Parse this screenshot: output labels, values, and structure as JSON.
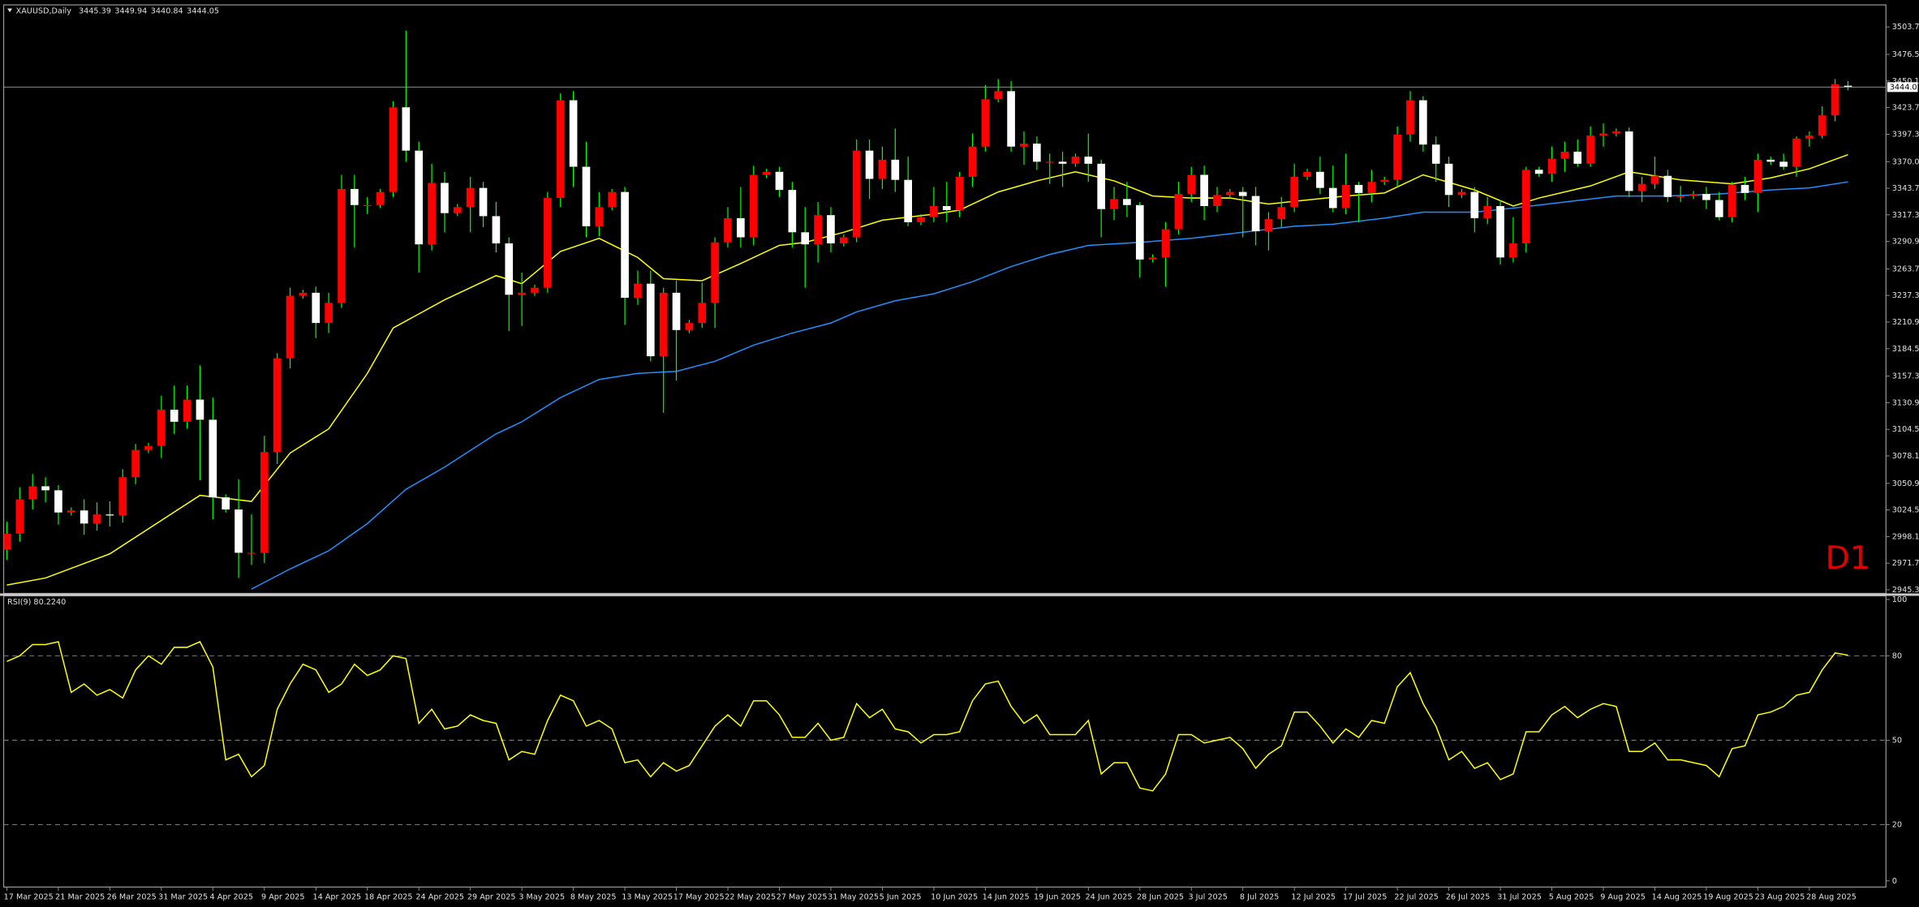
{
  "chart_data": [
    {
      "type": "candlestick",
      "title": "XAUUSD,Daily",
      "annotation": "D1",
      "up_color": "#ff0000",
      "down_color": "#ffffff",
      "wick_color": "#00ff00",
      "categories": [
        "17 Mar 2025",
        null,
        null,
        null,
        "21 Mar 2025",
        null,
        null,
        null,
        "26 Mar 2025",
        null,
        null,
        null,
        "31 Mar 2025",
        null,
        null,
        null,
        "4 Apr 2025",
        null,
        null,
        null,
        "9 Apr 2025",
        null,
        null,
        null,
        "14 Apr 2025",
        null,
        null,
        null,
        "18 Apr 2025",
        null,
        null,
        null,
        "24 Apr 2025",
        null,
        null,
        null,
        "29 Apr 2025",
        null,
        null,
        null,
        "3 May 2025",
        null,
        null,
        null,
        "8 May 2025",
        null,
        null,
        null,
        "13 May 2025",
        null,
        null,
        null,
        "17 May 2025",
        null,
        null,
        null,
        "22 May 2025",
        null,
        null,
        null,
        "27 May 2025",
        null,
        null,
        null,
        "31 May 2025",
        null,
        null,
        null,
        "5 Jun 2025",
        null,
        null,
        null,
        "10 Jun 2025",
        null,
        null,
        null,
        "14 Jun 2025",
        null,
        null,
        null,
        "19 Jun 2025",
        null,
        null,
        null,
        "24 Jun 2025",
        null,
        null,
        null,
        "28 Jun 2025",
        null,
        null,
        null,
        "3 Jul 2025",
        null,
        null,
        null,
        "8 Jul 2025",
        null,
        null,
        null,
        "12 Jul 2025",
        null,
        null,
        null,
        "17 Jul 2025",
        null,
        null,
        null,
        "22 Jul 2025",
        null,
        null,
        null,
        "26 Jul 2025",
        null,
        null,
        null,
        "31 Jul 2025",
        null,
        null,
        null,
        "5 Aug 2025",
        null,
        null,
        null,
        "9 Aug 2025",
        null,
        null,
        null,
        "14 Aug 2025",
        null,
        null,
        null,
        "19 Aug 2025",
        null,
        null,
        null,
        "23 Aug 2025",
        null,
        null,
        null,
        "28 Aug 2025",
        null,
        null,
        null
      ],
      "open": [
        2985,
        3001,
        3035,
        3048,
        3044,
        3022,
        3024,
        3011,
        3020,
        3019,
        3057,
        3084,
        3088,
        3124,
        3112,
        3134,
        3114,
        3037,
        3025,
        2982,
        2982,
        3082,
        3175,
        3237,
        3240,
        3210,
        3230,
        3343,
        3327,
        3327,
        3340,
        3424,
        3381,
        3288,
        3349,
        3319,
        3325,
        3344,
        3316,
        3289,
        3238,
        3240,
        3245,
        3334,
        3431,
        3365,
        3306,
        3325,
        3340,
        3235,
        3249,
        3177,
        3240,
        3203,
        3210,
        3230,
        3290,
        3314,
        3295,
        3357,
        3360,
        3342,
        3300,
        3288,
        3317,
        3289,
        3295,
        3381,
        3353,
        3372,
        3352,
        3310,
        3315,
        3326,
        3322,
        3355,
        3385,
        3432,
        3440,
        3385,
        3388,
        3370,
        3370,
        3368,
        3375,
        3368,
        3323,
        3333,
        3327,
        3273,
        3275,
        3303,
        3338,
        3357,
        3326,
        3337,
        3340,
        3336,
        3301,
        3313,
        3325,
        3355,
        3360,
        3344,
        3324,
        3347,
        3339,
        3350,
        3352,
        3397,
        3431,
        3387,
        3368,
        3337,
        3340,
        3314,
        3326,
        3275,
        3289,
        3362,
        3358,
        3373,
        3380,
        3368,
        3396,
        3398,
        3400,
        3341,
        3348,
        3356,
        3335,
        3336,
        3338,
        3332,
        3315,
        3347,
        3339,
        3372,
        3370,
        3365,
        3393,
        3396,
        3416,
        3445.39
      ],
      "high": [
        3013,
        3047,
        3060,
        3057,
        3049,
        3027,
        3035,
        3032,
        3033,
        3065,
        3090,
        3091,
        3138,
        3148,
        3148,
        3168,
        3136,
        3040,
        3055,
        3020,
        3098,
        3180,
        3245,
        3243,
        3246,
        3240,
        3357,
        3357,
        3335,
        3343,
        3430,
        3500,
        3390,
        3368,
        3360,
        3328,
        3355,
        3350,
        3330,
        3295,
        3260,
        3248,
        3340,
        3438,
        3440,
        3390,
        3340,
        3343,
        3345,
        3262,
        3262,
        3245,
        3252,
        3213,
        3250,
        3295,
        3325,
        3345,
        3366,
        3363,
        3365,
        3350,
        3325,
        3330,
        3325,
        3298,
        3392,
        3392,
        3385,
        3403,
        3375,
        3318,
        3345,
        3350,
        3360,
        3398,
        3446,
        3452,
        3450,
        3400,
        3395,
        3378,
        3380,
        3378,
        3398,
        3372,
        3345,
        3350,
        3330,
        3278,
        3310,
        3350,
        3365,
        3366,
        3345,
        3343,
        3345,
        3345,
        3320,
        3335,
        3368,
        3363,
        3375,
        3366,
        3378,
        3350,
        3362,
        3355,
        3405,
        3440,
        3435,
        3395,
        3375,
        3343,
        3345,
        3335,
        3332,
        3315,
        3365,
        3365,
        3385,
        3390,
        3392,
        3405,
        3408,
        3403,
        3404,
        3355,
        3375,
        3362,
        3346,
        3341,
        3345,
        3340,
        3350,
        3355,
        3378,
        3375,
        3378,
        3395,
        3400,
        3425,
        3452,
        3449.94
      ],
      "low": [
        2975,
        2993,
        3025,
        3032,
        3010,
        3019,
        3000,
        3004,
        3008,
        3012,
        3050,
        3081,
        3076,
        3100,
        3105,
        3054,
        3015,
        3022,
        2957,
        2970,
        2972,
        3070,
        3165,
        3234,
        3195,
        3200,
        3225,
        3285,
        3318,
        3324,
        3335,
        3370,
        3260,
        3282,
        3300,
        3316,
        3300,
        3305,
        3280,
        3202,
        3207,
        3237,
        3240,
        3325,
        3345,
        3295,
        3296,
        3322,
        3208,
        3228,
        3172,
        3121,
        3153,
        3200,
        3205,
        3205,
        3285,
        3285,
        3287,
        3354,
        3335,
        3285,
        3245,
        3270,
        3280,
        3286,
        3290,
        3333,
        3343,
        3340,
        3306,
        3307,
        3310,
        3310,
        3315,
        3345,
        3380,
        3429,
        3380,
        3367,
        3362,
        3348,
        3345,
        3365,
        3350,
        3295,
        3312,
        3315,
        3255,
        3270,
        3246,
        3298,
        3330,
        3312,
        3320,
        3334,
        3295,
        3287,
        3282,
        3305,
        3320,
        3352,
        3338,
        3320,
        3318,
        3310,
        3330,
        3347,
        3345,
        3390,
        3380,
        3350,
        3325,
        3334,
        3300,
        3308,
        3268,
        3270,
        3280,
        3355,
        3350,
        3360,
        3365,
        3365,
        3385,
        3395,
        3335,
        3330,
        3343,
        3330,
        3330,
        3333,
        3323,
        3312,
        3310,
        3332,
        3320,
        3367,
        3362,
        3355,
        3385,
        3393,
        3410,
        3440.84
      ],
      "close": [
        3001,
        3035,
        3048,
        3044,
        3022,
        3024,
        3011,
        3020,
        3019,
        3057,
        3084,
        3088,
        3124,
        3112,
        3134,
        3114,
        3037,
        3025,
        2982,
        2982,
        3082,
        3175,
        3237,
        3240,
        3210,
        3230,
        3343,
        3327,
        3327,
        3340,
        3424,
        3381,
        3288,
        3349,
        3319,
        3325,
        3344,
        3316,
        3289,
        3238,
        3240,
        3245,
        3334,
        3431,
        3365,
        3306,
        3325,
        3340,
        3235,
        3249,
        3177,
        3240,
        3203,
        3210,
        3230,
        3290,
        3314,
        3295,
        3357,
        3360,
        3342,
        3300,
        3288,
        3317,
        3289,
        3295,
        3381,
        3353,
        3372,
        3352,
        3310,
        3315,
        3326,
        3322,
        3355,
        3385,
        3432,
        3440,
        3385,
        3388,
        3370,
        3370,
        3368,
        3375,
        3368,
        3323,
        3333,
        3327,
        3273,
        3275,
        3303,
        3338,
        3357,
        3326,
        3337,
        3340,
        3336,
        3301,
        3313,
        3325,
        3355,
        3360,
        3344,
        3324,
        3347,
        3339,
        3350,
        3352,
        3397,
        3431,
        3387,
        3368,
        3337,
        3340,
        3314,
        3326,
        3275,
        3289,
        3362,
        3358,
        3373,
        3380,
        3368,
        3396,
        3398,
        3400,
        3341,
        3348,
        3356,
        3335,
        3336,
        3338,
        3332,
        3315,
        3347,
        3339,
        3372,
        3370,
        3365,
        3393,
        3396,
        3416,
        3447,
        3444.05
      ],
      "lines": [
        {
          "color": "#ffff00",
          "x": [
            0,
            3,
            8,
            15,
            19,
            22,
            25,
            28,
            30,
            34,
            38,
            40,
            43,
            46,
            49,
            51,
            54,
            57,
            60,
            62,
            65,
            68,
            72,
            74,
            77,
            80,
            83,
            86,
            89,
            92,
            95,
            98,
            101,
            104,
            107,
            110,
            114,
            117,
            119,
            123,
            126,
            130,
            134,
            137,
            140,
            143
          ],
          "values": [
            2950,
            2957,
            2981,
            3039,
            3033,
            3081,
            3105,
            3160,
            3205,
            3233,
            3257,
            3249,
            3281,
            3294,
            3275,
            3254,
            3252,
            3269,
            3287,
            3290,
            3300,
            3312,
            3318,
            3322,
            3340,
            3351,
            3360,
            3351,
            3336,
            3334,
            3334,
            3328,
            3332,
            3336,
            3339,
            3357,
            3342,
            3326,
            3334,
            3346,
            3360,
            3352,
            3348,
            3354,
            3363,
            3377
          ]
        },
        {
          "color": "#1e90ff",
          "x": [
            19,
            22,
            25,
            28,
            31,
            34,
            38,
            40,
            43,
            46,
            49,
            52,
            55,
            58,
            61,
            64,
            66,
            69,
            72,
            75,
            78,
            81,
            84,
            88,
            92,
            96,
            100,
            103,
            107,
            110,
            114,
            117,
            121,
            125,
            129,
            133,
            137,
            140,
            143
          ],
          "values": [
            2946,
            2966,
            2984,
            3011,
            3045,
            3067,
            3100,
            3112,
            3136,
            3154,
            3160,
            3162,
            3172,
            3188,
            3200,
            3210,
            3221,
            3232,
            3239,
            3251,
            3266,
            3278,
            3287,
            3290,
            3294,
            3300,
            3306,
            3308,
            3314,
            3320,
            3320,
            3324,
            3330,
            3336,
            3336,
            3338,
            3342,
            3344,
            3350
          ]
        }
      ],
      "ylim": [
        2941.7,
        3525.6
      ],
      "yticks": [
        {
          "value": 3503.7,
          "label": "3503.70"
        },
        {
          "value": 3476.5,
          "label": "3476.50"
        },
        {
          "value": 3450.1,
          "label": "3450.10"
        },
        {
          "value": 3423.7,
          "label": "3423.70"
        },
        {
          "value": 3397.3,
          "label": "3397.30"
        },
        {
          "value": 3370,
          "label": "3370.00"
        },
        {
          "value": 3343.7,
          "label": "3343.70"
        },
        {
          "value": 3317.3,
          "label": "3317.30"
        },
        {
          "value": 3290.9,
          "label": "3290.90"
        },
        {
          "value": 3263.7,
          "label": "3263.70"
        },
        {
          "value": 3237.3,
          "label": "3237.30"
        },
        {
          "value": 3210.9,
          "label": "3210.90"
        },
        {
          "value": 3184.5,
          "label": "3184.50"
        },
        {
          "value": 3157.3,
          "label": "3157.30"
        },
        {
          "value": 3130.9,
          "label": "3130.90"
        },
        {
          "value": 3104.5,
          "label": "3104.50"
        },
        {
          "value": 3078.1,
          "label": "3078.10"
        },
        {
          "value": 3050.9,
          "label": "3050.90"
        },
        {
          "value": 3024.5,
          "label": "3024.50"
        },
        {
          "value": 2998.1,
          "label": "2998.10"
        },
        {
          "value": 2971.7,
          "label": "2971.70"
        },
        {
          "value": 2945.3,
          "label": "2945.30"
        }
      ]
    },
    {
      "type": "line",
      "title": "RSI(9) 80.2240",
      "color": "#ffff00",
      "values": [
        78,
        80,
        84,
        84,
        85,
        67,
        70,
        66,
        68,
        65,
        75,
        80,
        77,
        83,
        83,
        85,
        76,
        43,
        45,
        37,
        41,
        61,
        70,
        77,
        75,
        67,
        70,
        77,
        73,
        75,
        80,
        79,
        56,
        61,
        54,
        55,
        59,
        57,
        56,
        43,
        46,
        45,
        57,
        66,
        64,
        55,
        57,
        54,
        42,
        43,
        37,
        42,
        39,
        41,
        48,
        55,
        59,
        55,
        64,
        64,
        59,
        51,
        51,
        56,
        50,
        51,
        63,
        58,
        61,
        54,
        53,
        49,
        52,
        52,
        53,
        64,
        70,
        71,
        62,
        56,
        59,
        52,
        52,
        52,
        57,
        38,
        42,
        42,
        33,
        32,
        38,
        52,
        52,
        49,
        50,
        51,
        47,
        40,
        45,
        48,
        60,
        60,
        55,
        49,
        54,
        51,
        57,
        56,
        69,
        74,
        63,
        55,
        43,
        46,
        40,
        42,
        36,
        38,
        53,
        53,
        59,
        62,
        58,
        61,
        63,
        62,
        46,
        46,
        49,
        43,
        43,
        42,
        41,
        37,
        47,
        48,
        59,
        60,
        62,
        66,
        67,
        75,
        81,
        80.224
      ],
      "ylim": [
        -2.2,
        101.3
      ],
      "yticks": [
        0,
        20,
        50,
        80,
        100
      ],
      "grid": "dashed"
    }
  ]
}
